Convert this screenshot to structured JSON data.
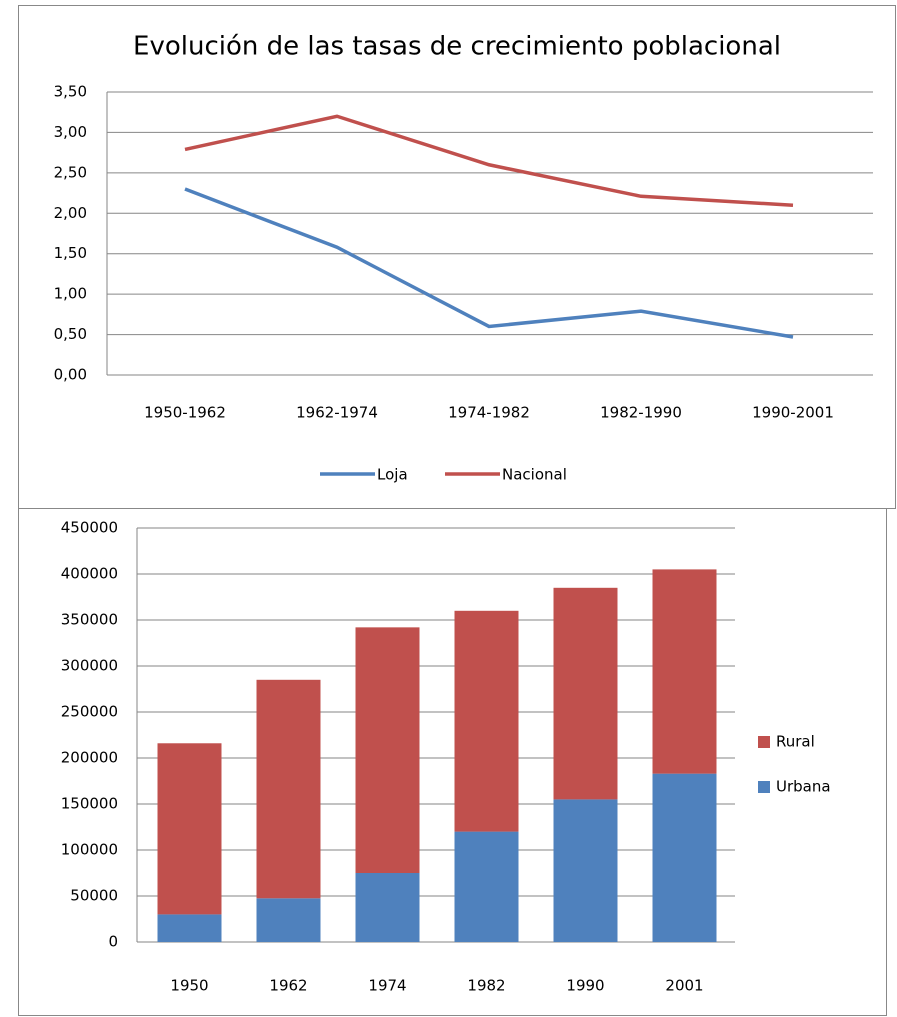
{
  "chart_data": [
    {
      "type": "line",
      "title": "Evolución de las tasas de crecimiento poblacional",
      "categories": [
        "1950-1962",
        "1962-1974",
        "1974-1982",
        "1982-1990",
        "1990-2001"
      ],
      "series": [
        {
          "name": "Loja",
          "color": "#4f81bd",
          "values": [
            2.3,
            1.58,
            0.6,
            0.79,
            0.47
          ]
        },
        {
          "name": "Nacional",
          "color": "#c0504d",
          "values": [
            2.79,
            3.2,
            2.6,
            2.21,
            2.1
          ]
        }
      ],
      "ylim": [
        0,
        3.5
      ],
      "yticks": [
        {
          "value": 0,
          "label": "0,00"
        },
        {
          "value": 0.5,
          "label": "0,50"
        },
        {
          "value": 1,
          "label": "1,00"
        },
        {
          "value": 1.5,
          "label": "1,50"
        },
        {
          "value": 2,
          "label": "2,00"
        },
        {
          "value": 2.5,
          "label": "2,50"
        },
        {
          "value": 3,
          "label": "3,00"
        },
        {
          "value": 3.5,
          "label": "3,50"
        }
      ],
      "grid": true,
      "legend": "bottom"
    },
    {
      "type": "stacked_bar",
      "categories": [
        "1950",
        "1962",
        "1974",
        "1982",
        "1990",
        "2001"
      ],
      "series": [
        {
          "name": "Urbana",
          "color": "#4f81bd",
          "values": [
            30000,
            47500,
            75000,
            120000,
            155000,
            183000
          ]
        },
        {
          "name": "Rural",
          "color": "#c0504d",
          "values": [
            186000,
            237500,
            267000,
            240000,
            230000,
            222000
          ]
        }
      ],
      "ylim": [
        0,
        450000
      ],
      "yticks": [
        0,
        50000,
        100000,
        150000,
        200000,
        250000,
        300000,
        350000,
        400000,
        450000
      ],
      "grid": true,
      "legend": "right"
    }
  ]
}
